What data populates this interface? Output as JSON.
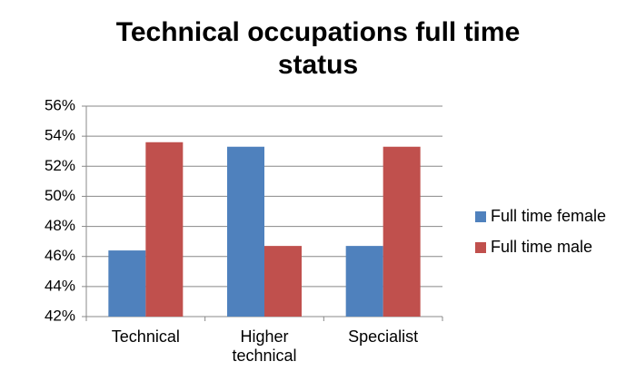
{
  "chart_data": {
    "type": "bar",
    "title": "Technical occupations full time status",
    "categories": [
      "Technical",
      "Higher technical",
      "Specialist"
    ],
    "series": [
      {
        "name": "Full time female",
        "color": "#4f81bd",
        "values": [
          46.4,
          53.3,
          46.7
        ]
      },
      {
        "name": "Full time male",
        "color": "#c0504d",
        "values": [
          53.6,
          46.7,
          53.3
        ]
      }
    ],
    "ylim": [
      42,
      56
    ],
    "yticks": [
      {
        "value": 42,
        "label": "42%"
      },
      {
        "value": 44,
        "label": "44%"
      },
      {
        "value": 46,
        "label": "46%"
      },
      {
        "value": 48,
        "label": "48%"
      },
      {
        "value": 50,
        "label": "50%"
      },
      {
        "value": 52,
        "label": "52%"
      },
      {
        "value": 54,
        "label": "54%"
      },
      {
        "value": 56,
        "label": "56%"
      }
    ],
    "grid": true,
    "legend": "right"
  }
}
